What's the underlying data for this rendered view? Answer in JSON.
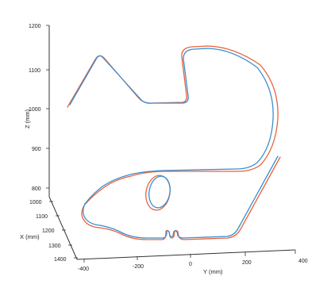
{
  "chart_data": {
    "type": "line",
    "title": "",
    "axes": {
      "x": {
        "label": "X (mm)",
        "ticks": [
          "1000",
          "1100",
          "1200",
          "1300",
          "1400"
        ]
      },
      "y": {
        "label": "Y (mm)",
        "ticks": [
          "-400",
          "-200",
          "0",
          "200",
          "400"
        ]
      },
      "z": {
        "label": "Z (mm)",
        "ticks": [
          "800",
          "900",
          "1000",
          "1100",
          "1200"
        ]
      }
    },
    "series": [
      {
        "color": "#e8613c"
      },
      {
        "color": "#3a8fd1"
      }
    ],
    "grid": false,
    "legend": "none"
  }
}
